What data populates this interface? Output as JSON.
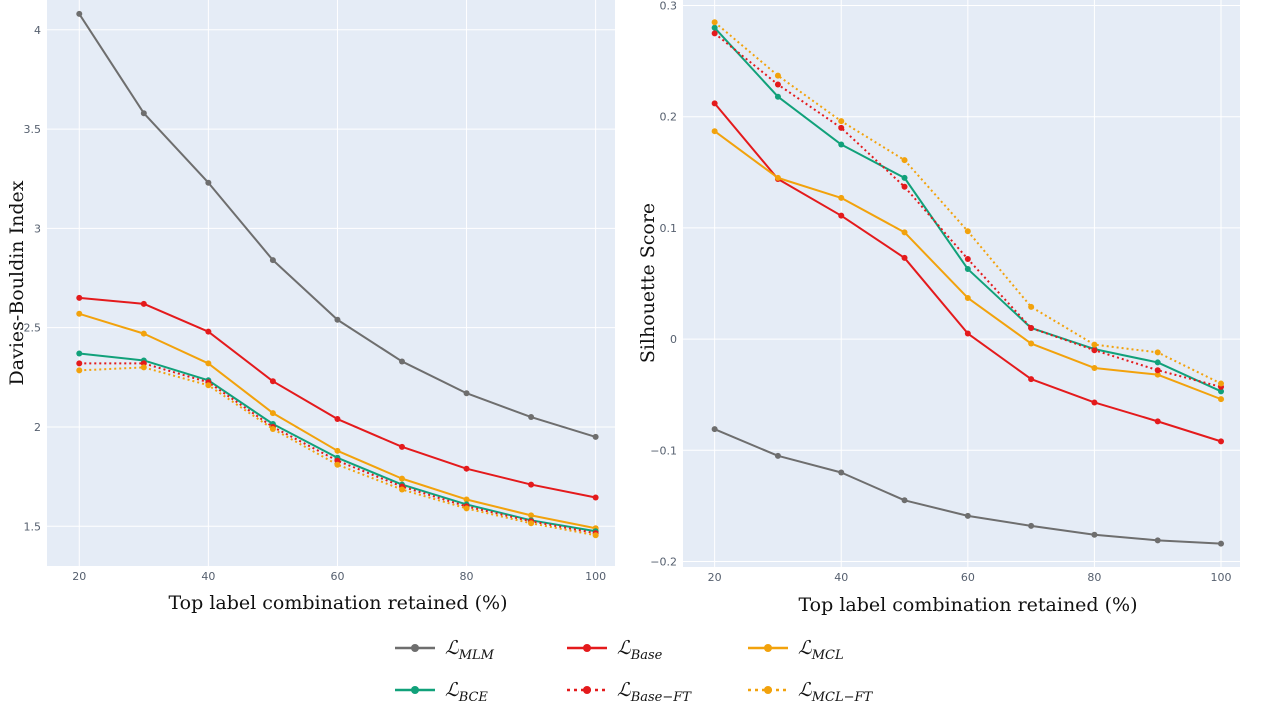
{
  "series_styles": [
    {
      "key": "mlm",
      "color": "#6e6e6e",
      "dash": "solid"
    },
    {
      "key": "base",
      "color": "#e41a1c",
      "dash": "solid"
    },
    {
      "key": "mcl",
      "color": "#f2a20c",
      "dash": "solid"
    },
    {
      "key": "bce",
      "color": "#11a17a",
      "dash": "solid"
    },
    {
      "key": "base_ft",
      "color": "#e41a1c",
      "dash": "dot"
    },
    {
      "key": "mcl_ft",
      "color": "#f2a20c",
      "dash": "dot"
    }
  ],
  "legend": [
    {
      "key": "mlm",
      "main": "ℒ",
      "sub": "MLM"
    },
    {
      "key": "base",
      "main": "ℒ",
      "sub": "Base"
    },
    {
      "key": "mcl",
      "main": "ℒ",
      "sub": "MCL"
    },
    {
      "key": "bce",
      "main": "ℒ",
      "sub": "BCE"
    },
    {
      "key": "base_ft",
      "main": "ℒ",
      "sub": "Base−FT"
    },
    {
      "key": "mcl_ft",
      "main": "ℒ",
      "sub": "MCL−FT"
    }
  ],
  "chart_data": [
    {
      "type": "line",
      "xlabel": "Top label combination retained (%)",
      "ylabel": "Davies-Bouldin Index",
      "x": [
        20,
        30,
        40,
        50,
        60,
        70,
        80,
        90,
        100
      ],
      "xlim": [
        15,
        103
      ],
      "ylim": [
        1.3,
        4.15
      ],
      "xticks": [
        "20",
        "40",
        "60",
        "80",
        "100"
      ],
      "yticks": [
        "1.5",
        "2",
        "2.5",
        "3",
        "3.5",
        "4"
      ],
      "grid": true,
      "series": [
        {
          "key": "mlm",
          "values": [
            4.08,
            3.58,
            3.23,
            2.84,
            2.54,
            2.33,
            2.17,
            2.05,
            1.95
          ]
        },
        {
          "key": "base",
          "values": [
            2.65,
            2.62,
            2.48,
            2.23,
            2.04,
            1.9,
            1.79,
            1.71,
            1.645
          ]
        },
        {
          "key": "mcl",
          "values": [
            2.57,
            2.47,
            2.32,
            2.07,
            1.88,
            1.74,
            1.635,
            1.555,
            1.49
          ]
        },
        {
          "key": "bce",
          "values": [
            2.37,
            2.335,
            2.235,
            2.015,
            1.845,
            1.71,
            1.61,
            1.53,
            1.475
          ]
        },
        {
          "key": "base_ft",
          "values": [
            2.32,
            2.32,
            2.225,
            2.0,
            1.83,
            1.7,
            1.6,
            1.525,
            1.465
          ]
        },
        {
          "key": "mcl_ft",
          "values": [
            2.285,
            2.3,
            2.21,
            1.99,
            1.81,
            1.685,
            1.59,
            1.515,
            1.455
          ]
        }
      ]
    },
    {
      "type": "line",
      "xlabel": "Top label combination retained (%)",
      "ylabel": "Silhouette  Score",
      "x": [
        20,
        30,
        40,
        50,
        60,
        70,
        80,
        90,
        100
      ],
      "xlim": [
        15,
        103
      ],
      "ylim": [
        -0.205,
        0.305
      ],
      "xticks": [
        "20",
        "40",
        "60",
        "80",
        "100"
      ],
      "yticks": [
        "−0.2",
        "−0.1",
        "0",
        "0.1",
        "0.2",
        "0.3"
      ],
      "grid": true,
      "series": [
        {
          "key": "mlm",
          "values": [
            -0.081,
            -0.105,
            -0.12,
            -0.145,
            -0.159,
            -0.168,
            -0.176,
            -0.181,
            -0.184
          ]
        },
        {
          "key": "base",
          "values": [
            0.212,
            0.144,
            0.111,
            0.073,
            0.005,
            -0.036,
            -0.057,
            -0.074,
            -0.092
          ]
        },
        {
          "key": "mcl",
          "values": [
            0.187,
            0.145,
            0.127,
            0.096,
            0.037,
            -0.004,
            -0.026,
            -0.032,
            -0.054
          ]
        },
        {
          "key": "bce",
          "values": [
            0.28,
            0.218,
            0.175,
            0.145,
            0.063,
            0.01,
            -0.009,
            -0.021,
            -0.047
          ]
        },
        {
          "key": "base_ft",
          "values": [
            0.275,
            0.229,
            0.19,
            0.137,
            0.072,
            0.01,
            -0.01,
            -0.028,
            -0.043
          ]
        },
        {
          "key": "mcl_ft",
          "values": [
            0.285,
            0.237,
            0.196,
            0.161,
            0.097,
            0.029,
            -0.005,
            -0.012,
            -0.04
          ]
        }
      ]
    }
  ]
}
